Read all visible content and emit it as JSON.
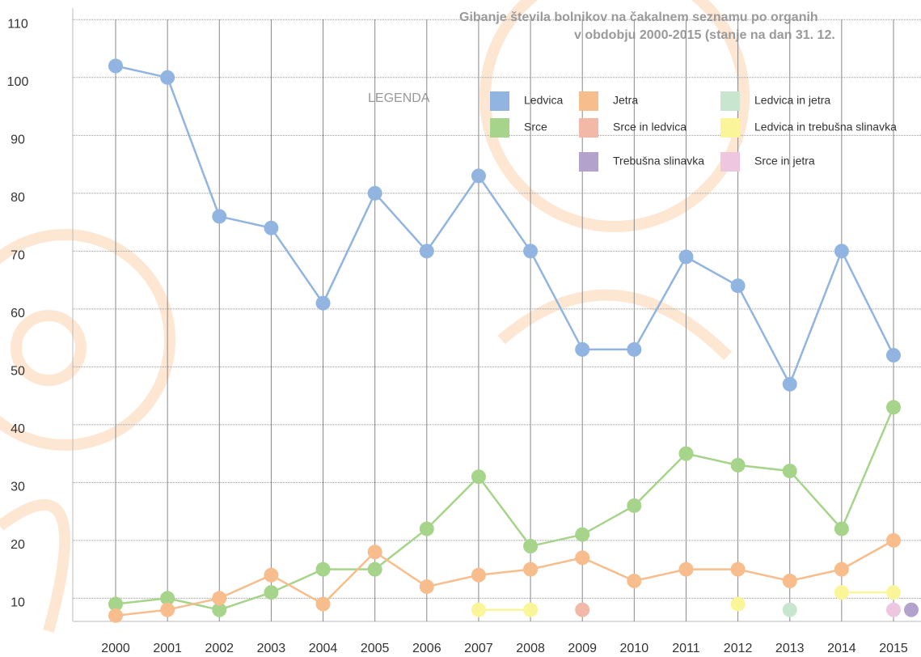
{
  "chart_data": {
    "type": "line",
    "title": [
      "Gibanje števila bolnikov na čakalnem seznamu po organih",
      "v obdobju 2000-2015 (stanje na dan 31. 12."
    ],
    "legend_title": "LEGENDA",
    "categories": [
      "2000",
      "2001",
      "2002",
      "2003",
      "2004",
      "2005",
      "2006",
      "2007",
      "2008",
      "2009",
      "2010",
      "2011",
      "2012",
      "2013",
      "2014",
      "2015"
    ],
    "series": [
      {
        "name": "Ledvica",
        "color": "#92b4e0",
        "values": [
          102,
          100,
          76,
          74,
          61,
          80,
          70,
          83,
          70,
          53,
          53,
          69,
          64,
          47,
          70,
          52
        ]
      },
      {
        "name": "Srce",
        "color": "#a6d48a",
        "values": [
          9,
          10,
          8,
          11,
          15,
          15,
          22,
          31,
          19,
          21,
          26,
          35,
          33,
          32,
          22,
          43
        ]
      },
      {
        "name": "Jetra",
        "color": "#f7bd8c",
        "values": [
          7,
          8,
          10,
          14,
          9,
          18,
          12,
          14,
          15,
          17,
          13,
          15,
          15,
          13,
          15,
          20
        ]
      },
      {
        "name": "Srce in ledvica",
        "color": "#f2b8a8",
        "values": [
          null,
          null,
          null,
          null,
          null,
          null,
          null,
          null,
          null,
          8,
          null,
          null,
          null,
          null,
          null,
          null
        ]
      },
      {
        "name": "Trebušna slinavka",
        "color": "#b3a2cc",
        "values": [
          null,
          null,
          null,
          null,
          null,
          null,
          null,
          null,
          null,
          null,
          null,
          null,
          null,
          null,
          null,
          8
        ]
      },
      {
        "name": "Ledvica in jetra",
        "color": "#c8e6cf",
        "values": [
          null,
          null,
          null,
          null,
          null,
          null,
          null,
          null,
          null,
          null,
          null,
          null,
          null,
          8,
          null,
          null
        ]
      },
      {
        "name": "Ledvica in trebušna slinavka",
        "color": "#fbf59a",
        "values": [
          null,
          null,
          null,
          null,
          null,
          null,
          null,
          8,
          8,
          null,
          null,
          null,
          9,
          null,
          11,
          11
        ]
      },
      {
        "name": "Srce in jetra",
        "color": "#eec6e0",
        "values": [
          null,
          null,
          null,
          null,
          null,
          null,
          null,
          null,
          null,
          null,
          null,
          null,
          null,
          null,
          null,
          8
        ]
      }
    ],
    "ylim": [
      6,
      112
    ],
    "yticks": [
      10,
      20,
      30,
      40,
      50,
      60,
      70,
      80,
      90,
      100,
      110
    ],
    "grid": true
  }
}
